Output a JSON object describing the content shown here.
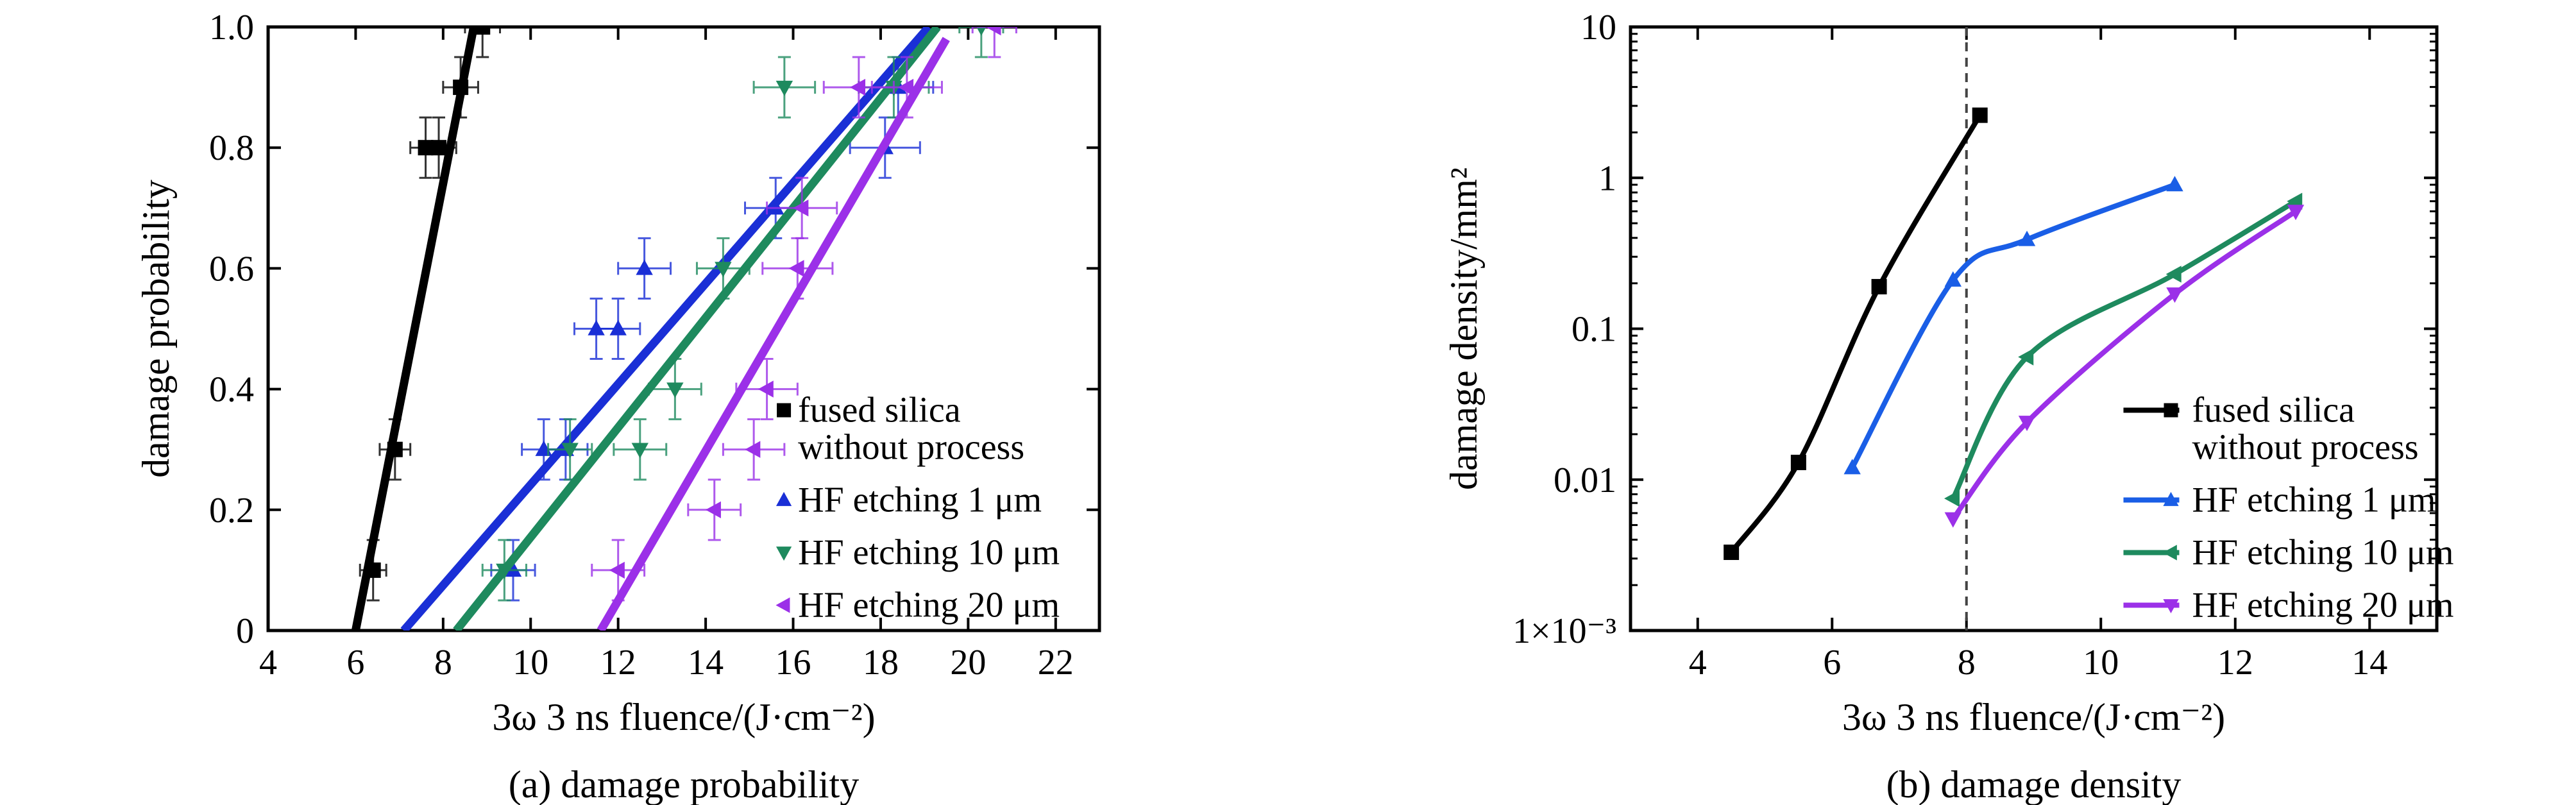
{
  "chart_data": [
    {
      "type": "scatter",
      "caption": "(a) damage probability",
      "xlabel": "3ω 3 ns fluence/(J·cm⁻²)",
      "ylabel": "damage probability",
      "xlim": [
        4,
        23
      ],
      "ylim": [
        0,
        1.0
      ],
      "x_ticks": [
        4,
        6,
        8,
        10,
        12,
        14,
        16,
        18,
        20,
        22
      ],
      "y_ticks": [
        0,
        0.2,
        0.4,
        0.6,
        0.8,
        1.0
      ],
      "x_tick_labels": [
        "4",
        "6",
        "8",
        "10",
        "12",
        "14",
        "16",
        "18",
        "20",
        "22"
      ],
      "y_tick_labels": [
        "0",
        "0.2",
        "0.4",
        "0.6",
        "0.8",
        "1.0"
      ],
      "legend_position": "bottom-right",
      "series": [
        {
          "name": "fused silica without process",
          "legend_lines": [
            "fused silica",
            "without process"
          ],
          "color": "#000000",
          "marker": "square",
          "points": [
            {
              "x": 6.4,
              "y": 0.1,
              "xerr": 0.3,
              "yerr": 0.05
            },
            {
              "x": 6.9,
              "y": 0.3,
              "xerr": 0.35,
              "yerr": 0.05
            },
            {
              "x": 7.6,
              "y": 0.8,
              "xerr": 0.35,
              "yerr": 0.05
            },
            {
              "x": 7.9,
              "y": 0.8,
              "xerr": 0.4,
              "yerr": 0.05
            },
            {
              "x": 8.4,
              "y": 0.9,
              "xerr": 0.4,
              "yerr": 0.05
            },
            {
              "x": 8.9,
              "y": 1.0,
              "xerr": 0.4,
              "yerr": 0.05
            }
          ],
          "fit": [
            [
              6.0,
              0.0
            ],
            [
              8.7,
              1.0
            ]
          ]
        },
        {
          "name": "HF etching 1 μm",
          "legend_lines": [
            "HF etching 1 μm"
          ],
          "color": "#1a2fd6",
          "marker": "triangle-up",
          "points": [
            {
              "x": 9.6,
              "y": 0.1,
              "xerr": 0.5,
              "yerr": 0.05
            },
            {
              "x": 10.3,
              "y": 0.3,
              "xerr": 0.5,
              "yerr": 0.05
            },
            {
              "x": 10.8,
              "y": 0.3,
              "xerr": 0.5,
              "yerr": 0.05
            },
            {
              "x": 11.5,
              "y": 0.5,
              "xerr": 0.5,
              "yerr": 0.05
            },
            {
              "x": 12.0,
              "y": 0.5,
              "xerr": 0.5,
              "yerr": 0.05
            },
            {
              "x": 12.6,
              "y": 0.6,
              "xerr": 0.6,
              "yerr": 0.05
            },
            {
              "x": 15.6,
              "y": 0.7,
              "xerr": 0.7,
              "yerr": 0.05
            },
            {
              "x": 18.1,
              "y": 0.8,
              "xerr": 0.8,
              "yerr": 0.05
            },
            {
              "x": 18.4,
              "y": 0.9,
              "xerr": 0.8,
              "yerr": 0.05
            }
          ],
          "fit": [
            [
              7.1,
              0.0
            ],
            [
              19.1,
              1.0
            ]
          ]
        },
        {
          "name": "HF etching 10 μm",
          "legend_lines": [
            "HF etching 10 μm"
          ],
          "color": "#1e8a5e",
          "marker": "triangle-down",
          "points": [
            {
              "x": 9.4,
              "y": 0.1,
              "xerr": 0.5,
              "yerr": 0.05
            },
            {
              "x": 10.9,
              "y": 0.3,
              "xerr": 0.5,
              "yerr": 0.05
            },
            {
              "x": 12.5,
              "y": 0.3,
              "xerr": 0.6,
              "yerr": 0.05
            },
            {
              "x": 13.3,
              "y": 0.4,
              "xerr": 0.6,
              "yerr": 0.05
            },
            {
              "x": 14.4,
              "y": 0.6,
              "xerr": 0.6,
              "yerr": 0.05
            },
            {
              "x": 15.8,
              "y": 0.9,
              "xerr": 0.7,
              "yerr": 0.05
            },
            {
              "x": 18.3,
              "y": 0.9,
              "xerr": 0.8,
              "yerr": 0.05
            },
            {
              "x": 20.3,
              "y": 1.0,
              "xerr": 0.5,
              "yerr": 0.05
            }
          ],
          "fit": [
            [
              8.3,
              0.0
            ],
            [
              19.3,
              1.0
            ]
          ]
        },
        {
          "name": "HF etching 20 μm",
          "legend_lines": [
            "HF etching 20 μm"
          ],
          "color": "#9b30e8",
          "marker": "triangle-left",
          "points": [
            {
              "x": 12.0,
              "y": 0.1,
              "xerr": 0.6,
              "yerr": 0.05
            },
            {
              "x": 14.2,
              "y": 0.2,
              "xerr": 0.6,
              "yerr": 0.05
            },
            {
              "x": 15.1,
              "y": 0.3,
              "xerr": 0.7,
              "yerr": 0.05
            },
            {
              "x": 15.4,
              "y": 0.4,
              "xerr": 0.7,
              "yerr": 0.05
            },
            {
              "x": 16.1,
              "y": 0.6,
              "xerr": 0.8,
              "yerr": 0.05
            },
            {
              "x": 16.2,
              "y": 0.7,
              "xerr": 0.8,
              "yerr": 0.05
            },
            {
              "x": 17.5,
              "y": 0.9,
              "xerr": 0.8,
              "yerr": 0.05
            },
            {
              "x": 18.6,
              "y": 0.9,
              "xerr": 0.8,
              "yerr": 0.05
            },
            {
              "x": 20.6,
              "y": 1.0,
              "xerr": 0.5,
              "yerr": 0.05
            }
          ],
          "fit": [
            [
              11.6,
              0.0
            ],
            [
              19.5,
              0.98
            ]
          ]
        }
      ]
    },
    {
      "type": "line",
      "caption": "(b) damage density",
      "xlabel": "3ω 3 ns fluence/(J·cm⁻²)",
      "ylabel": "damage density/mm²",
      "xlim": [
        3,
        15
      ],
      "ylim": [
        0.001,
        10
      ],
      "y_scale": "log",
      "x_ticks": [
        4,
        6,
        8,
        10,
        12,
        14
      ],
      "y_ticks": [
        0.001,
        0.01,
        0.1,
        1,
        10
      ],
      "x_tick_labels": [
        "4",
        "6",
        "8",
        "10",
        "12",
        "14"
      ],
      "y_tick_labels": [
        "1×10⁻³",
        "0.01",
        "0.1",
        "1",
        "10"
      ],
      "reference_line_x": 8,
      "legend_position": "bottom-right",
      "series": [
        {
          "name": "fused silica without process",
          "legend_lines": [
            "fused silica",
            "without process"
          ],
          "color": "#000000",
          "marker": "square",
          "x": [
            4.5,
            5.5,
            6.7,
            8.2
          ],
          "y": [
            0.0033,
            0.013,
            0.19,
            2.6
          ]
        },
        {
          "name": "HF etching 1 μm",
          "legend_lines": [
            "HF etching 1 μm"
          ],
          "color": "#1a5ee6",
          "marker": "triangle-up",
          "x": [
            6.3,
            7.8,
            8.9,
            11.1
          ],
          "y": [
            0.012,
            0.21,
            0.39,
            0.9
          ]
        },
        {
          "name": "HF etching 10 μm",
          "legend_lines": [
            "HF etching 10 μm"
          ],
          "color": "#1e8a5e",
          "marker": "triangle-left",
          "x": [
            7.8,
            8.9,
            11.1,
            12.9
          ],
          "y": [
            0.0075,
            0.065,
            0.23,
            0.7
          ]
        },
        {
          "name": "HF etching 20 μm",
          "legend_lines": [
            "HF etching 20 μm"
          ],
          "color": "#9b30e8",
          "marker": "triangle-down",
          "x": [
            7.8,
            8.9,
            11.1,
            12.9
          ],
          "y": [
            0.0055,
            0.024,
            0.17,
            0.6
          ]
        }
      ]
    }
  ]
}
